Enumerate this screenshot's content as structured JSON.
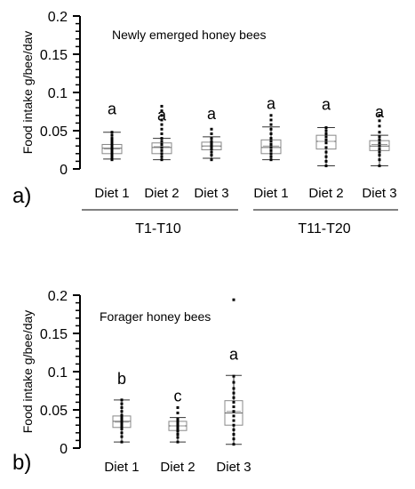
{
  "chart_data": [
    {
      "type": "box",
      "panel_label": "a)",
      "title": "Newly emerged honey bees",
      "ylabel": "Food intake g/bee/dav",
      "ylim": [
        0,
        0.2
      ],
      "yticks": [
        "0",
        "0.05",
        "0.1",
        "0.15",
        "0.2"
      ],
      "categories": [
        "Diet 1",
        "Diet 2",
        "Diet 3",
        "Diet 1",
        "Diet 2",
        "Diet 3"
      ],
      "groups": [
        {
          "label": "T1-T10",
          "categories": [
            0,
            1,
            2
          ]
        },
        {
          "label": "T11-T20",
          "categories": [
            3,
            4,
            5
          ]
        }
      ],
      "letters": [
        "a",
        "a",
        "a",
        "a",
        "a",
        "a"
      ],
      "boxes": [
        {
          "whisker_low": 0.013,
          "q1": 0.02,
          "median": 0.027,
          "mean": 0.026,
          "q3": 0.032,
          "whisker_high": 0.048,
          "points": [
            0.012,
            0.015,
            0.018,
            0.02,
            0.022,
            0.024,
            0.026,
            0.028,
            0.03,
            0.032,
            0.034,
            0.037,
            0.04,
            0.044,
            0.048
          ]
        },
        {
          "whisker_low": 0.012,
          "q1": 0.02,
          "median": 0.028,
          "mean": 0.029,
          "q3": 0.034,
          "whisker_high": 0.04,
          "points": [
            0.012,
            0.016,
            0.02,
            0.024,
            0.028,
            0.032,
            0.036,
            0.04,
            0.046,
            0.052,
            0.058,
            0.064,
            0.07,
            0.076,
            0.082
          ]
        },
        {
          "whisker_low": 0.014,
          "q1": 0.025,
          "median": 0.03,
          "mean": 0.03,
          "q3": 0.035,
          "whisker_high": 0.042,
          "points": [
            0.012,
            0.018,
            0.022,
            0.026,
            0.028,
            0.03,
            0.032,
            0.034,
            0.036,
            0.04,
            0.046,
            0.052
          ]
        },
        {
          "whisker_low": 0.012,
          "q1": 0.02,
          "median": 0.028,
          "mean": 0.03,
          "q3": 0.038,
          "whisker_high": 0.055,
          "points": [
            0.012,
            0.016,
            0.02,
            0.024,
            0.028,
            0.032,
            0.036,
            0.04,
            0.046,
            0.052,
            0.058,
            0.064,
            0.07
          ]
        },
        {
          "whisker_low": 0.004,
          "q1": 0.026,
          "median": 0.036,
          "mean": 0.036,
          "q3": 0.044,
          "whisker_high": 0.054,
          "points": [
            0.004,
            0.01,
            0.016,
            0.022,
            0.028,
            0.034,
            0.038,
            0.042,
            0.046,
            0.05,
            0.054
          ]
        },
        {
          "whisker_low": 0.004,
          "q1": 0.024,
          "median": 0.03,
          "mean": 0.032,
          "q3": 0.037,
          "whisker_high": 0.044,
          "points": [
            0.004,
            0.012,
            0.018,
            0.022,
            0.026,
            0.03,
            0.034,
            0.038,
            0.042,
            0.048,
            0.056,
            0.063,
            0.07
          ]
        }
      ]
    },
    {
      "type": "box",
      "panel_label": "b)",
      "title": "Forager honey bees",
      "ylabel": "Food intake g/bee/day",
      "ylim": [
        0,
        0.2
      ],
      "yticks": [
        "0",
        "0.05",
        "0.1",
        "0.15",
        "0.2"
      ],
      "categories": [
        "Diet 1",
        "Diet 2",
        "Diet 3"
      ],
      "letters": [
        "b",
        "c",
        "a"
      ],
      "boxes": [
        {
          "whisker_low": 0.008,
          "q1": 0.027,
          "median": 0.035,
          "mean": 0.034,
          "q3": 0.042,
          "whisker_high": 0.063,
          "points": [
            0.008,
            0.015,
            0.02,
            0.025,
            0.028,
            0.031,
            0.034,
            0.037,
            0.04,
            0.043,
            0.048,
            0.053,
            0.058,
            0.063
          ]
        },
        {
          "whisker_low": 0.008,
          "q1": 0.023,
          "median": 0.029,
          "mean": 0.029,
          "q3": 0.035,
          "whisker_high": 0.04,
          "points": [
            0.008,
            0.014,
            0.018,
            0.022,
            0.025,
            0.028,
            0.03,
            0.032,
            0.035,
            0.038,
            0.046,
            0.053
          ]
        },
        {
          "whisker_low": 0.005,
          "q1": 0.03,
          "median": 0.046,
          "mean": 0.048,
          "q3": 0.062,
          "whisker_high": 0.095,
          "points": [
            0.005,
            0.012,
            0.018,
            0.024,
            0.03,
            0.036,
            0.042,
            0.048,
            0.054,
            0.06,
            0.066,
            0.072,
            0.078,
            0.086,
            0.094,
            0.194
          ]
        }
      ]
    }
  ]
}
